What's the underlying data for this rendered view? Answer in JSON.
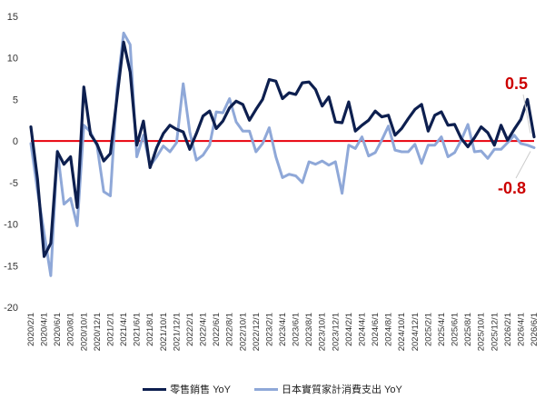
{
  "chart_data": {
    "type": "line",
    "title": "",
    "xlabel": "",
    "ylabel": "",
    "ylim": [
      -20,
      15
    ],
    "yticks": [
      15,
      10,
      5,
      0,
      -5,
      -10,
      -15,
      -20
    ],
    "grid": false,
    "legend_position": "bottom",
    "reference_line": {
      "y": 0,
      "color": "#e8000b"
    },
    "x": [
      "2020/2/1",
      "2020/3/1",
      "2020/4/1",
      "2020/5/1",
      "2020/6/1",
      "2020/7/1",
      "2020/8/1",
      "2020/9/1",
      "2020/10/1",
      "2020/11/1",
      "2020/12/1",
      "2021/1/1",
      "2021/2/1",
      "2021/3/1",
      "2021/4/1",
      "2021/5/1",
      "2021/6/1",
      "2021/7/1",
      "2021/8/1",
      "2021/9/1",
      "2021/10/1",
      "2021/11/1",
      "2021/12/1",
      "2022/1/1",
      "2022/2/1",
      "2022/3/1",
      "2022/4/1",
      "2022/5/1",
      "2022/6/1",
      "2022/7/1",
      "2022/8/1",
      "2022/9/1",
      "2022/10/1",
      "2022/11/1",
      "2022/12/1",
      "2023/1/1",
      "2023/2/1",
      "2023/3/1",
      "2023/4/1",
      "2023/5/1",
      "2023/6/1",
      "2023/7/1",
      "2023/8/1",
      "2023/9/1",
      "2023/10/1",
      "2023/11/1",
      "2023/12/1",
      "2024/1/1",
      "2024/2/1",
      "2024/3/1",
      "2024/4/1",
      "2024/5/1",
      "2024/6/1",
      "2024/7/1",
      "2024/8/1",
      "2024/9/1",
      "2024/10/1",
      "2024/11/1",
      "2024/12/1",
      "2025/1/1",
      "2025/2/1",
      "2025/3/1",
      "2025/4/1",
      "2025/5/1",
      "2025/6/1",
      "2025/7/1",
      "2025/8/1",
      "2025/9/1",
      "2025/10/1",
      "2025/11/1",
      "2025/12/1",
      "2026/1/1",
      "2026/2/1",
      "2026/3/1",
      "2026/4/1",
      "2026/5/1",
      "2026/6/1"
    ],
    "xtick_labels": [
      "2020/2/1",
      "2020/4/1",
      "2020/6/1",
      "2020/8/1",
      "2020/10/1",
      "2020/12/1",
      "2021/2/1",
      "2021/4/1",
      "2021/6/1",
      "2021/8/1",
      "2021/10/1",
      "2021/12/1",
      "2022/2/1",
      "2022/4/1",
      "2022/6/1",
      "2022/8/1",
      "2022/10/1",
      "2022/12/1",
      "2023/2/1",
      "2023/4/1",
      "2023/6/1",
      "2023/8/1",
      "2023/10/1",
      "2023/12/1",
      "2024/2/1",
      "2024/4/1",
      "2024/6/1",
      "2024/8/1",
      "2024/10/1",
      "2024/12/1",
      "2025/2/1",
      "2025/4/1",
      "2025/6/1",
      "2025/8/1",
      "2025/10/1",
      "2025/12/1",
      "2026/2/1",
      "2026/4/1",
      "2026/6/1"
    ],
    "series": [
      {
        "name": "零售銷售 YoY",
        "color": "#0d1f4f",
        "values": [
          1.7,
          -4.6,
          -13.9,
          -12.3,
          -1.3,
          -2.8,
          -1.9,
          -8.0,
          6.5,
          0.8,
          -0.4,
          -2.4,
          -1.5,
          5.2,
          11.9,
          8.3,
          -0.5,
          2.4,
          -3.2,
          -0.8,
          0.9,
          1.9,
          1.4,
          1.1,
          -1.0,
          0.9,
          3.0,
          3.6,
          1.5,
          2.4,
          4.0,
          4.8,
          4.4,
          2.5,
          3.8,
          5.0,
          7.4,
          7.2,
          5.1,
          5.8,
          5.6,
          7.0,
          7.1,
          6.2,
          4.2,
          5.3,
          2.3,
          2.2,
          4.7,
          1.2,
          1.9,
          2.5,
          3.6,
          2.9,
          3.1,
          0.7,
          1.5,
          2.7,
          3.8,
          4.4,
          1.2,
          3.1,
          3.5,
          1.9,
          2.0,
          0.3,
          -0.7,
          0.4,
          1.7,
          1.0,
          -0.5,
          1.9,
          0.1,
          1.4,
          2.6,
          5.0,
          0.5
        ]
      },
      {
        "name": "日本實質家計消費支出 YoY",
        "color": "#8fa8d8",
        "values": [
          -0.3,
          -6.0,
          -11.1,
          -16.2,
          -1.2,
          -7.6,
          -6.9,
          -10.2,
          1.9,
          1.1,
          -0.6,
          -6.1,
          -6.6,
          6.2,
          13.0,
          11.6,
          -1.9,
          0.7,
          -3.0,
          -1.9,
          -0.6,
          -1.3,
          -0.2,
          6.9,
          1.1,
          -2.3,
          -1.7,
          -0.5,
          3.5,
          3.4,
          5.1,
          2.3,
          1.2,
          1.2,
          -1.3,
          -0.3,
          1.6,
          -1.9,
          -4.4,
          -4.0,
          -4.2,
          -5.0,
          -2.5,
          -2.8,
          -2.4,
          -2.9,
          -2.5,
          -6.3,
          -0.5,
          -0.9,
          0.5,
          -1.8,
          -1.4,
          0.1,
          1.8,
          -1.1,
          -1.3,
          -1.3,
          -0.4,
          -2.7,
          -0.5,
          -0.5,
          0.5,
          -1.9,
          -1.4,
          0.1,
          2.0,
          -1.3,
          -1.2,
          -2.1,
          -1.0,
          -1.0,
          -0.2,
          0.7,
          -0.3,
          -0.5,
          -0.8
        ]
      }
    ],
    "annotations": [
      {
        "text": "0.5",
        "value": 0.5,
        "series": 0
      },
      {
        "text": "-0.8",
        "value": -0.8,
        "series": 1
      }
    ]
  }
}
